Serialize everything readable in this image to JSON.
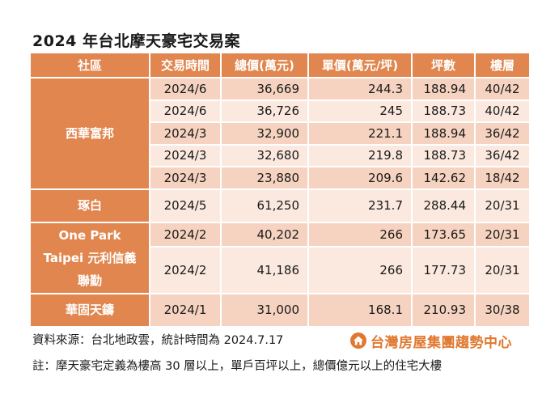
{
  "title": "2024 年台北摩天豪宅交易案",
  "colors": {
    "header": "#e0864e",
    "row_dark": "#f6d3c0",
    "row_light": "#fbe9df",
    "logo": "#e0782f"
  },
  "table": {
    "headers": [
      "社區",
      "交易時間",
      "總價(萬元)",
      "單價(萬元/坪)",
      "坪數",
      "樓層"
    ],
    "groups": [
      {
        "name": "西華富邦",
        "rows": [
          [
            "2024/6",
            "36,669",
            "244.3",
            "188.94",
            "40/42"
          ],
          [
            "2024/6",
            "36,726",
            "245",
            "188.73",
            "40/42"
          ],
          [
            "2024/3",
            "32,900",
            "221.1",
            "188.94",
            "36/42"
          ],
          [
            "2024/3",
            "32,680",
            "219.8",
            "188.73",
            "36/42"
          ],
          [
            "2024/3",
            "23,880",
            "209.6",
            "142.62",
            "18/42"
          ]
        ]
      },
      {
        "name": "琢白",
        "rows": [
          [
            "2024/5",
            "61,250",
            "231.7",
            "288.44",
            "20/31"
          ]
        ]
      },
      {
        "name": "One Park Taipei 元利信義聯勤",
        "name_lines": [
          "One Park",
          "Taipei 元利信義",
          "聯勤"
        ],
        "rows": [
          [
            "2024/2",
            "40,202",
            "266",
            "173.65",
            "20/31"
          ],
          [
            "2024/2",
            "41,186",
            "266",
            "177.73",
            "20/31"
          ]
        ]
      },
      {
        "name": "華固天鑄",
        "rows": [
          [
            "2024/1",
            "31,000",
            "168.1",
            "210.93",
            "30/38"
          ]
        ]
      }
    ]
  },
  "source": "資料來源：台北地政雲，統計時間為 2024.7.17",
  "logo": {
    "text": "台灣房屋集團趨勢中心",
    "icon": "house-logo-icon"
  },
  "note": "註：摩天豪宅定義為樓高 30 層以上，單戶百坪以上，總價億元以上的住宅大樓"
}
